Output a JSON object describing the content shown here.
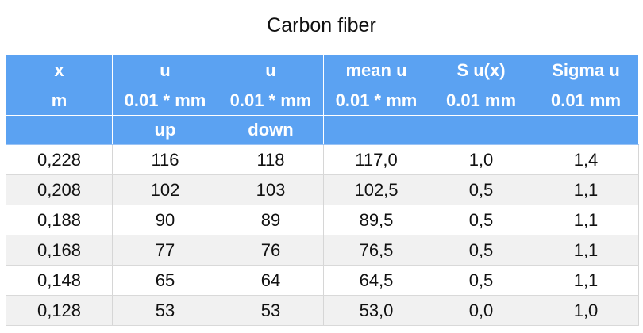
{
  "title": "Carbon fiber",
  "header_rows": [
    [
      "x",
      "u",
      "u",
      "mean u",
      "S u(x)",
      "Sigma u"
    ],
    [
      "m",
      "0.01 * mm",
      "0.01 * mm",
      "0.01 * mm",
      "0.01 mm",
      "0.01 mm"
    ],
    [
      "",
      "up",
      "down",
      "",
      "",
      ""
    ]
  ],
  "rows": [
    [
      "0,228",
      "116",
      "118",
      "117,0",
      "1,0",
      "1,4"
    ],
    [
      "0,208",
      "102",
      "103",
      "102,5",
      "0,5",
      "1,1"
    ],
    [
      "0,188",
      "90",
      "89",
      "89,5",
      "0,5",
      "1,1"
    ],
    [
      "0,168",
      "77",
      "76",
      "76,5",
      "0,5",
      "1,1"
    ],
    [
      "0,148",
      "65",
      "64",
      "64,5",
      "0,5",
      "1,1"
    ],
    [
      "0,128",
      "53",
      "53",
      "53,0",
      "0,0",
      "1,0"
    ]
  ],
  "colors": {
    "header_bg": "#5ba2f2",
    "header_text": "#ffffff",
    "row_alt_bg": "#f1f1f1"
  }
}
